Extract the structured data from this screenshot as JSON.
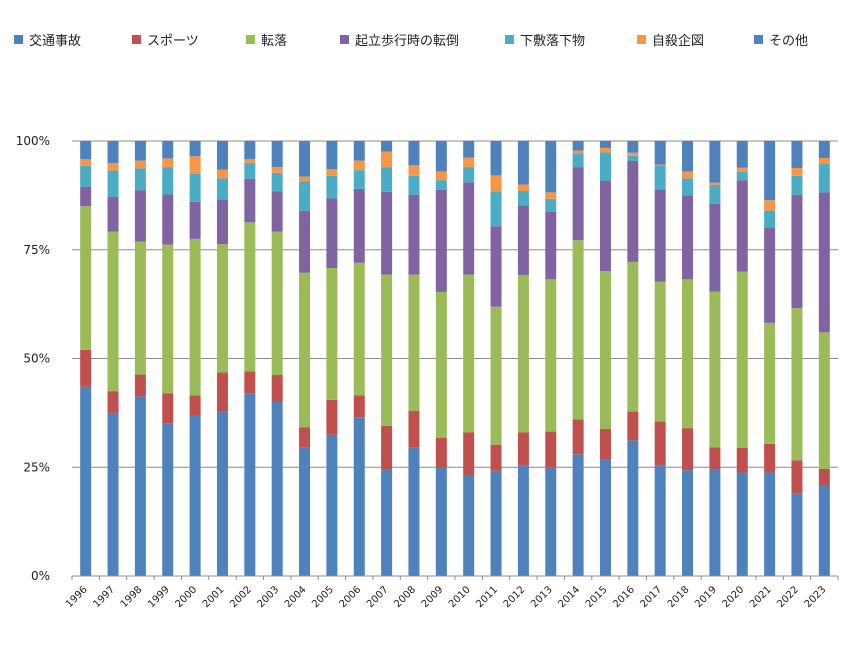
{
  "chart_data": {
    "type": "bar",
    "stacked": true,
    "normalized": true,
    "title": "",
    "xlabel": "",
    "ylabel": "",
    "ylim": [
      0,
      100
    ],
    "y_ticks": [
      "0%",
      "25%",
      "50%",
      "75%",
      "100%"
    ],
    "y_tick_values": [
      0,
      25,
      50,
      75,
      100
    ],
    "grid": "horizontal",
    "legend_position": "top",
    "categories": [
      "1996",
      "1997",
      "1998",
      "1999",
      "2000",
      "2001",
      "2002",
      "2003",
      "2004",
      "2005",
      "2006",
      "2007",
      "2008",
      "2009",
      "2010",
      "2011",
      "2012",
      "2013",
      "2014",
      "2015",
      "2016",
      "2017",
      "2018",
      "2019",
      "2020",
      "2021",
      "2022",
      "2023"
    ],
    "series": [
      {
        "name": "交通事故",
        "color": "#4f81bd",
        "values": [
          43.5,
          37.5,
          41.3,
          35.0,
          36.8,
          37.8,
          42.0,
          40.0,
          29.5,
          32.5,
          36.5,
          24.5,
          29.5,
          25.0,
          23.0,
          24.2,
          25.5,
          25.0,
          28.0,
          26.8,
          31.2,
          25.5,
          24.3,
          24.5,
          23.8,
          23.8,
          19.0,
          20.8
        ]
      },
      {
        "name": "スポーツ",
        "color": "#c0504d",
        "values": [
          8.5,
          5.0,
          5.0,
          7.0,
          4.7,
          9.0,
          5.0,
          6.2,
          4.7,
          8.0,
          5.0,
          10.0,
          8.5,
          6.8,
          10.0,
          6.0,
          7.5,
          8.2,
          8.0,
          7.0,
          6.6,
          10.0,
          9.7,
          5.1,
          5.7,
          6.6,
          7.6,
          3.8
        ]
      },
      {
        "name": "転落",
        "color": "#9bbb59",
        "values": [
          33.0,
          36.7,
          30.6,
          34.2,
          36.0,
          29.5,
          34.3,
          33.0,
          35.5,
          30.3,
          30.5,
          34.8,
          31.3,
          33.5,
          36.3,
          31.7,
          36.2,
          35.0,
          41.2,
          36.3,
          34.4,
          32.2,
          34.2,
          35.8,
          40.5,
          27.8,
          35.0,
          31.4
        ]
      },
      {
        "name": "起立歩行時の転倒",
        "color": "#8064a2",
        "values": [
          4.5,
          8.0,
          11.8,
          11.5,
          8.5,
          10.3,
          10.0,
          9.2,
          14.2,
          16.0,
          17.0,
          19.0,
          18.3,
          23.5,
          21.2,
          18.5,
          16.0,
          15.5,
          16.8,
          20.8,
          23.2,
          21.2,
          19.3,
          20.2,
          21.0,
          21.9,
          26.0,
          32.2
        ]
      },
      {
        "name": "下敷落下物",
        "color": "#4bacc6",
        "values": [
          4.8,
          6.0,
          5.0,
          6.3,
          6.5,
          4.8,
          3.7,
          4.3,
          6.8,
          5.2,
          4.3,
          5.6,
          4.4,
          2.2,
          3.5,
          8.0,
          3.3,
          3.0,
          3.2,
          6.5,
          1.2,
          5.5,
          3.9,
          4.3,
          1.9,
          3.9,
          4.4,
          6.5
        ]
      },
      {
        "name": "自殺企図",
        "color": "#f79646",
        "values": [
          1.5,
          1.7,
          1.8,
          2.0,
          4.0,
          2.0,
          0.8,
          1.3,
          1.1,
          1.5,
          2.2,
          3.7,
          2.4,
          2.0,
          2.2,
          3.7,
          1.5,
          1.5,
          0.6,
          1.0,
          0.7,
          0.2,
          1.6,
          0.5,
          1.0,
          2.4,
          1.8,
          1.4
        ]
      },
      {
        "name": "その他",
        "color": "#4f81bd",
        "values": [
          4.2,
          5.1,
          4.5,
          4.0,
          3.5,
          6.6,
          4.2,
          6.0,
          8.2,
          6.5,
          4.5,
          2.4,
          5.6,
          7.0,
          3.8,
          7.9,
          10.0,
          11.8,
          2.2,
          1.6,
          2.7,
          5.4,
          7.0,
          9.6,
          6.1,
          13.6,
          6.2,
          3.9
        ]
      }
    ]
  }
}
